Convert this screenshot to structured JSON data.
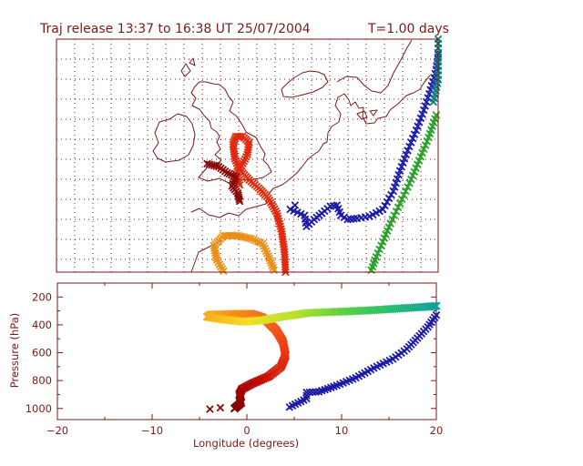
{
  "colors": {
    "axes": "#7a1a1a",
    "grid": "#7a1a1a",
    "coast": "#7a1a1a",
    "blue": "#1a1aa8",
    "green": "#2aa02a",
    "teal": "#0a7a7a",
    "red": "#e02a10",
    "orange": "#e89018",
    "darkred": "#8a0a0a",
    "rainbow": [
      "#7a0000",
      "#c00a00",
      "#f03a10",
      "#f2741a",
      "#f8a81a",
      "#f4e020",
      "#b8e030",
      "#5ed040",
      "#28c070",
      "#10a0a0"
    ]
  },
  "chart_data": [
    {
      "type": "map",
      "title": "Traj release 13:37 to 16:38 UT 25/07/2004",
      "subtitle": "T=1.00 days",
      "xlim": [
        -20,
        20
      ],
      "ylim": [
        40,
        63
      ],
      "grid": true,
      "coastline": "United Kingdom, Ireland, France, Benelux, Germany, Denmark, southern Norway and Sweden",
      "series": [
        {
          "color_key": "blue",
          "marker": "x",
          "points": [
            [
              4.5,
              46.2
            ],
            [
              6,
              45.6
            ],
            [
              6.2,
              44.5
            ],
            [
              7,
              45.2
            ],
            [
              7.8,
              45.8
            ],
            [
              8.7,
              46.5
            ],
            [
              9.4,
              46.6
            ],
            [
              9.8,
              45.6
            ],
            [
              10.5,
              45.2
            ],
            [
              11.5,
              45.3
            ],
            [
              12.8,
              45.5
            ],
            [
              14.2,
              46.2
            ],
            [
              15.3,
              48
            ],
            [
              16,
              50
            ],
            [
              16.8,
              52
            ],
            [
              17.7,
              54
            ],
            [
              18.5,
              56
            ],
            [
              19.2,
              58
            ],
            [
              19.8,
              60
            ],
            [
              20,
              61.5
            ]
          ]
        },
        {
          "color_key": "green",
          "marker": "x",
          "points": [
            [
              13,
              40.2
            ],
            [
              13.5,
              41.5
            ],
            [
              14.2,
              43
            ],
            [
              15,
              44.8
            ],
            [
              16,
              46.8
            ],
            [
              17,
              48.8
            ],
            [
              18,
              51
            ],
            [
              19,
              53.3
            ],
            [
              19.8,
              55.5
            ]
          ]
        },
        {
          "color_key": "teal",
          "marker": "x",
          "points": [
            [
              19.5,
              56.8
            ],
            [
              20,
              59
            ],
            [
              20,
              63
            ]
          ]
        },
        {
          "color_key": "red",
          "marker": "x",
          "points": [
            [
              -0.8,
              48.6
            ],
            [
              -1.2,
              49.7
            ],
            [
              -0.6,
              50.5
            ],
            [
              0,
              51.6
            ],
            [
              0.2,
              52.8
            ],
            [
              -0.5,
              53.4
            ],
            [
              -1.2,
              53.4
            ],
            [
              -1.5,
              52.6
            ],
            [
              -1.3,
              51.2
            ],
            [
              -0.8,
              50.1
            ],
            [
              0.2,
              49.1
            ],
            [
              1.2,
              48.3
            ],
            [
              2.2,
              47.3
            ],
            [
              3.1,
              45.8
            ],
            [
              3.6,
              44
            ],
            [
              3.9,
              42
            ],
            [
              4,
              40
            ]
          ]
        },
        {
          "color_key": "orange",
          "marker": "x",
          "points": [
            [
              -2.5,
              40.1
            ],
            [
              -3.2,
              41.2
            ],
            [
              -3.5,
              42.6
            ],
            [
              -2.5,
              43.6
            ],
            [
              -1,
              43.6
            ],
            [
              0.4,
              43.3
            ],
            [
              1.6,
              42.8
            ],
            [
              2.2,
              41.6
            ],
            [
              2.8,
              40.2
            ]
          ]
        },
        {
          "color_key": "darkred",
          "marker": "x",
          "points": [
            [
              -4.2,
              50.7
            ],
            [
              -3,
              50.4
            ],
            [
              -2.1,
              49.8
            ],
            [
              -1.2,
              49.4
            ],
            [
              -1.6,
              48.5
            ],
            [
              -1,
              47.8
            ],
            [
              -0.8,
              47
            ]
          ]
        }
      ]
    },
    {
      "type": "scatter",
      "xlabel": "Longitude  (degrees)",
      "ylabel": "Pressure  (hPa)",
      "xlim": [
        -20,
        20
      ],
      "ylim": [
        1080,
        100
      ],
      "xticks": [
        "−20",
        "−10",
        "0",
        "10",
        "20"
      ],
      "yticks": [
        "200",
        "400",
        "600",
        "800",
        "1000"
      ],
      "grid": false,
      "colored_track": {
        "points": [
          [
            -1.3,
            1000
          ],
          [
            -0.6,
            960
          ],
          [
            -0.8,
            900
          ],
          [
            -0.5,
            860
          ],
          [
            0.6,
            820
          ],
          [
            2.3,
            770
          ],
          [
            3.6,
            700
          ],
          [
            4.1,
            620
          ],
          [
            3.8,
            520
          ],
          [
            3.1,
            440
          ],
          [
            2.3,
            385
          ],
          [
            1.6,
            345
          ],
          [
            0.5,
            320
          ],
          [
            -1.7,
            322
          ],
          [
            -3.8,
            326
          ],
          [
            -4.2,
            342
          ],
          [
            -2.4,
            362
          ],
          [
            -0.4,
            378
          ],
          [
            1.6,
            368
          ],
          [
            3.6,
            343
          ],
          [
            6.5,
            314
          ],
          [
            10,
            305
          ],
          [
            13,
            296
          ],
          [
            16,
            283
          ],
          [
            18.5,
            272
          ],
          [
            20,
            265
          ]
        ]
      },
      "blue_track": {
        "points": [
          [
            4.5,
            990
          ],
          [
            6.3,
            930
          ],
          [
            6.3,
            885
          ],
          [
            7.6,
            880
          ],
          [
            9.5,
            835
          ],
          [
            11.5,
            780
          ],
          [
            13.4,
            710
          ],
          [
            15.4,
            645
          ],
          [
            16.9,
            573
          ],
          [
            18,
            495
          ],
          [
            19.1,
            415
          ],
          [
            20,
            330
          ]
        ]
      },
      "dark_markers": [
        [
          -3.9,
          1005
        ],
        [
          -2.8,
          995
        ]
      ]
    }
  ]
}
